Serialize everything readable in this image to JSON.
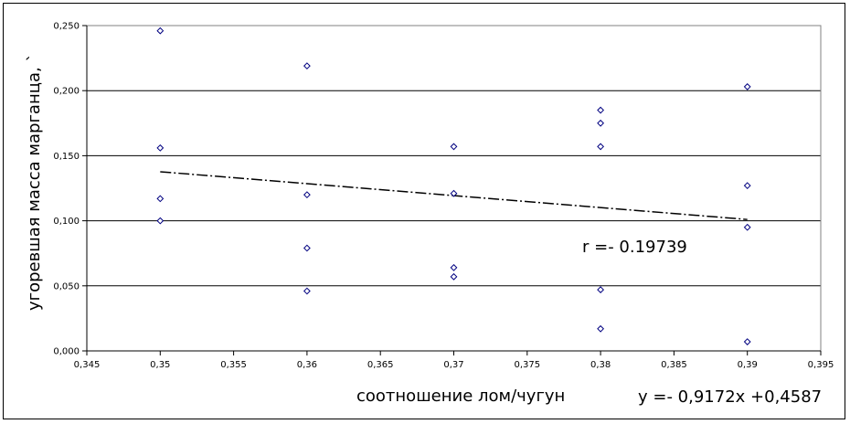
{
  "chart_data": {
    "type": "scatter",
    "xlabel": "соотношение лом/чугун",
    "ylabel": "угоревшая масса марганца, `",
    "xlim": [
      0.345,
      0.395
    ],
    "ylim": [
      0.0,
      0.25
    ],
    "xticks": [
      0.345,
      0.35,
      0.355,
      0.36,
      0.365,
      0.37,
      0.375,
      0.38,
      0.385,
      0.39,
      0.395
    ],
    "xtick_labels": [
      "0,345",
      "0,35",
      "0,355",
      "0,36",
      "0,365",
      "0,37",
      "0,375",
      "0,38",
      "0,385",
      "0,39",
      "0,395"
    ],
    "yticks": [
      0.0,
      0.05,
      0.1,
      0.15,
      0.2,
      0.25
    ],
    "ytick_labels": [
      "0,000",
      "0,050",
      "0,100",
      "0,150",
      "0,200",
      "0,250"
    ],
    "horizontal_gridlines": true,
    "marker_color": "#000080",
    "series": [
      {
        "points": [
          {
            "x": 0.35,
            "y": 0.246
          },
          {
            "x": 0.35,
            "y": 0.156
          },
          {
            "x": 0.35,
            "y": 0.117
          },
          {
            "x": 0.35,
            "y": 0.1
          },
          {
            "x": 0.36,
            "y": 0.219
          },
          {
            "x": 0.36,
            "y": 0.12
          },
          {
            "x": 0.36,
            "y": 0.079
          },
          {
            "x": 0.36,
            "y": 0.046
          },
          {
            "x": 0.37,
            "y": 0.157
          },
          {
            "x": 0.37,
            "y": 0.121
          },
          {
            "x": 0.37,
            "y": 0.064
          },
          {
            "x": 0.37,
            "y": 0.057
          },
          {
            "x": 0.38,
            "y": 0.185
          },
          {
            "x": 0.38,
            "y": 0.175
          },
          {
            "x": 0.38,
            "y": 0.157
          },
          {
            "x": 0.38,
            "y": 0.047
          },
          {
            "x": 0.38,
            "y": 0.017
          },
          {
            "x": 0.39,
            "y": 0.203
          },
          {
            "x": 0.39,
            "y": 0.127
          },
          {
            "x": 0.39,
            "y": 0.095
          },
          {
            "x": 0.39,
            "y": 0.007
          }
        ]
      }
    ],
    "trendline": {
      "slope": -0.9172,
      "intercept": 0.4587,
      "x_range": [
        0.35,
        0.39
      ],
      "style": "dash-dot"
    },
    "annotations": {
      "r_label": "r =- 0.19739",
      "equation_label": "y =- 0,9172x +0,4587"
    }
  }
}
